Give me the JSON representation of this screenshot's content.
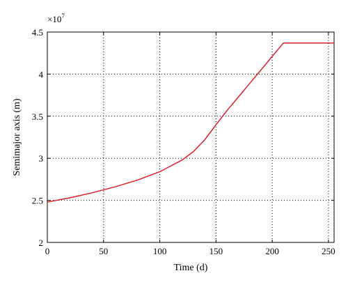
{
  "chart_data": {
    "type": "line",
    "xlabel": "Time (d)",
    "ylabel": "Semimajor axis (m)",
    "y_multiplier": "×10",
    "y_multiplier_exponent": "7",
    "xlim": [
      0,
      255
    ],
    "ylim": [
      2,
      4.5
    ],
    "x_ticks": [
      0,
      50,
      100,
      150,
      200,
      250
    ],
    "y_ticks": [
      2,
      2.5,
      3,
      3.5,
      4,
      4.5
    ],
    "x_tick_labels": [
      "0",
      "50",
      "100",
      "150",
      "200",
      "250"
    ],
    "y_tick_labels": [
      "2",
      "2.5",
      "3",
      "3.5",
      "4",
      "4.5"
    ],
    "grid": true,
    "series": [
      {
        "color": "#dd1f26",
        "x": [
          0,
          20,
          40,
          60,
          80,
          100,
          120,
          130,
          140,
          150,
          160,
          170,
          180,
          190,
          200,
          210,
          220,
          230,
          240,
          255
        ],
        "y": [
          2.48,
          2.53,
          2.59,
          2.66,
          2.74,
          2.84,
          2.98,
          3.08,
          3.22,
          3.4,
          3.57,
          3.73,
          3.89,
          4.05,
          4.21,
          4.37,
          4.37,
          4.37,
          4.37,
          4.37
        ]
      }
    ]
  }
}
